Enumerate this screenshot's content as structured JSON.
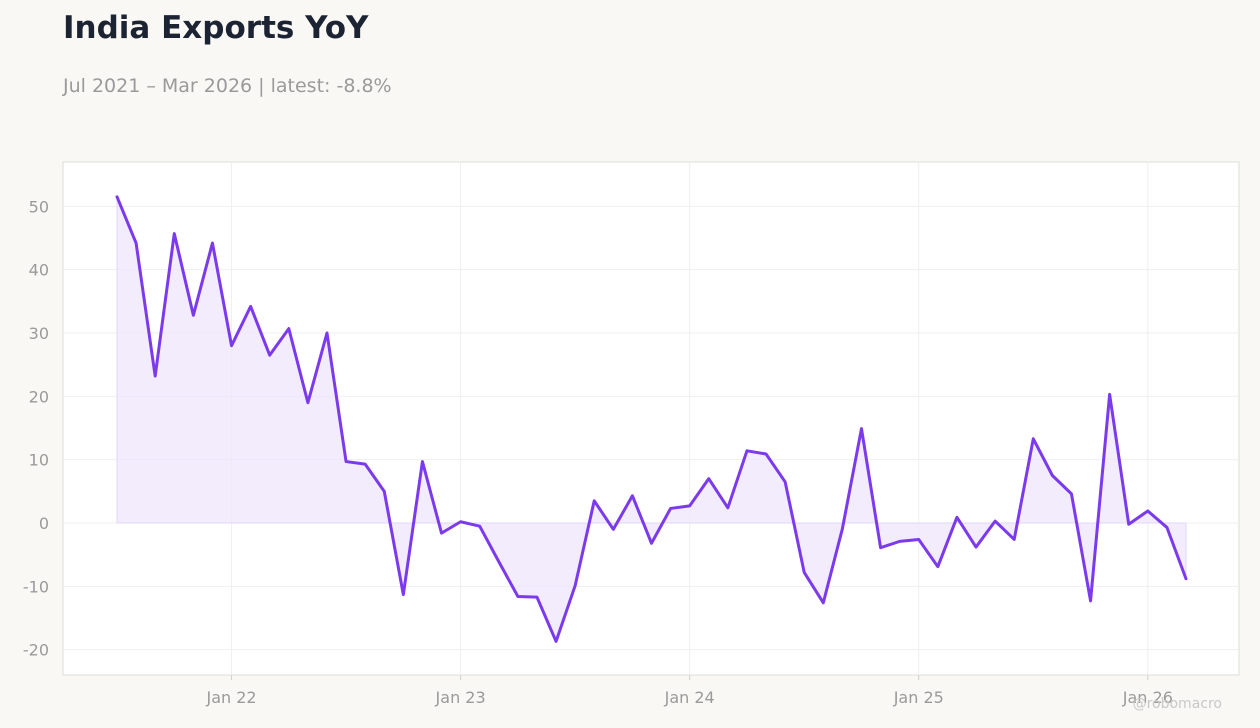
{
  "header": {
    "title": "India Exports YoY",
    "subtitle": "Jul 2021 – Mar 2026 | latest: -8.8%"
  },
  "watermark": "@robomacro",
  "chart_data": {
    "type": "area",
    "title": "India Exports YoY",
    "subtitle": "Jul 2021 – Mar 2026 | latest: -8.8%",
    "xlabel": "",
    "ylabel": "",
    "ylim": [
      -24,
      57
    ],
    "yticks": [
      -20,
      -10,
      0,
      10,
      20,
      30,
      40,
      50
    ],
    "xticks": [
      {
        "label": "Jan 22",
        "date": "2022-01"
      },
      {
        "label": "Jan 23",
        "date": "2023-01"
      },
      {
        "label": "Jan 24",
        "date": "2024-01"
      },
      {
        "label": "Jan 25",
        "date": "2025-01"
      },
      {
        "label": "Jan 26",
        "date": "2026-01"
      }
    ],
    "grid": true,
    "legend": "none",
    "colors": {
      "line": "#7c3aed",
      "fill": "#ede5fc"
    },
    "series": [
      {
        "x": [
          "2021-07",
          "2021-08",
          "2021-09",
          "2021-10",
          "2021-11",
          "2021-12",
          "2022-01",
          "2022-02",
          "2022-03",
          "2022-04",
          "2022-05",
          "2022-06",
          "2022-07",
          "2022-08",
          "2022-09",
          "2022-10",
          "2022-11",
          "2022-12",
          "2023-01",
          "2023-02",
          "2023-03",
          "2023-04",
          "2023-05",
          "2023-06",
          "2023-07",
          "2023-08",
          "2023-09",
          "2023-10",
          "2023-11",
          "2023-12",
          "2024-01",
          "2024-02",
          "2024-03",
          "2024-04",
          "2024-05",
          "2024-06",
          "2024-07",
          "2024-08",
          "2024-09",
          "2024-10",
          "2024-11",
          "2024-12",
          "2025-01",
          "2025-02",
          "2025-03",
          "2025-04",
          "2025-05",
          "2025-06",
          "2025-07",
          "2025-08",
          "2025-09",
          "2025-10",
          "2025-11",
          "2025-12",
          "2026-01",
          "2026-02",
          "2026-03"
        ],
        "values": [
          51.5,
          44.2,
          23.2,
          45.7,
          32.8,
          44.2,
          28.0,
          34.2,
          26.5,
          30.7,
          19.0,
          30.0,
          9.7,
          9.3,
          5.0,
          -11.3,
          9.7,
          -1.6,
          0.2,
          -0.5,
          -6.1,
          -11.6,
          -11.7,
          -18.7,
          -9.9,
          3.5,
          -1.0,
          4.3,
          -3.2,
          2.3,
          2.7,
          7.0,
          2.4,
          11.4,
          10.9,
          6.5,
          -7.8,
          -12.6,
          -0.9,
          14.9,
          -3.9,
          -2.9,
          -2.6,
          -6.9,
          0.9,
          -3.8,
          0.3,
          -2.6,
          13.3,
          7.5,
          4.6,
          -12.3,
          20.3,
          -0.2,
          1.9,
          -0.7,
          -8.8
        ]
      }
    ]
  }
}
